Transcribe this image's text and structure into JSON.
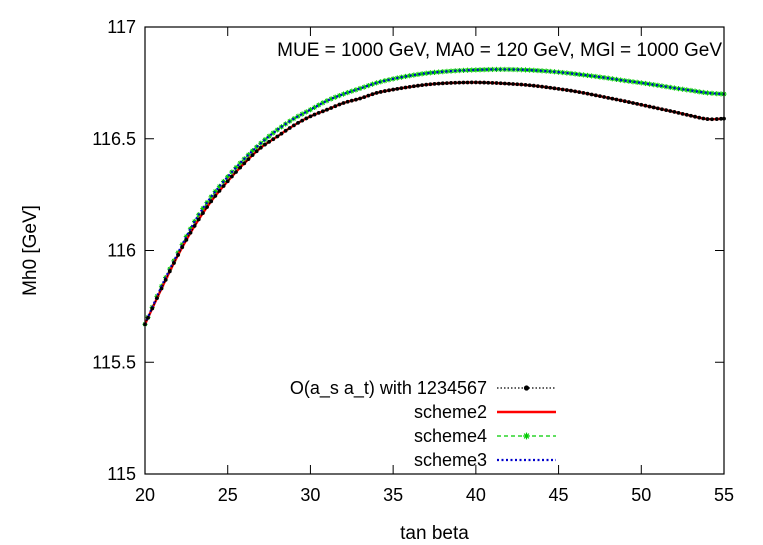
{
  "chart_data": {
    "type": "line",
    "title": "MUE = 1000 GeV, MA0 = 120 GeV, MGl = 1000 GeV",
    "xlabel": "tan beta",
    "ylabel": "Mh0 [GeV]",
    "xlim": [
      20,
      55
    ],
    "ylim": [
      115,
      117
    ],
    "xticks": [
      20,
      25,
      30,
      35,
      40,
      45,
      50,
      55
    ],
    "yticks": [
      115,
      115.5,
      116,
      116.5,
      117
    ],
    "legend_position": "bottom-center",
    "grid": false,
    "series": [
      {
        "name": "O(a_s a_t) with 1234567",
        "color": "#000000",
        "style": "dotted-with-dots",
        "x": [
          20,
          21,
          22,
          23,
          24,
          25,
          26,
          27,
          28,
          29,
          30,
          31,
          32,
          33,
          34,
          35,
          36,
          37,
          38,
          39,
          40,
          41,
          42,
          43,
          44,
          45,
          46,
          47,
          48,
          49,
          50,
          51,
          52,
          53,
          54,
          55
        ],
        "y": [
          115.67,
          115.83,
          115.98,
          116.11,
          116.22,
          116.31,
          116.39,
          116.46,
          116.51,
          116.56,
          116.6,
          116.63,
          116.66,
          116.68,
          116.705,
          116.72,
          116.732,
          116.742,
          116.748,
          116.751,
          116.752,
          116.75,
          116.746,
          116.741,
          116.733,
          116.723,
          116.712,
          116.698,
          116.683,
          116.668,
          116.652,
          116.636,
          116.62,
          116.603,
          116.588,
          116.59
        ]
      },
      {
        "name": "scheme2",
        "color": "#ff0000",
        "style": "solid",
        "x": [
          20,
          21,
          22,
          23,
          24,
          25,
          26,
          27,
          28,
          29,
          30,
          31,
          32,
          33,
          34,
          35,
          36,
          37,
          38,
          39,
          40,
          41,
          42,
          43,
          44,
          45,
          46,
          47,
          48,
          49,
          50,
          51,
          52,
          53,
          54,
          55
        ],
        "y": [
          115.67,
          115.83,
          115.98,
          116.11,
          116.22,
          116.31,
          116.39,
          116.46,
          116.51,
          116.56,
          116.6,
          116.63,
          116.66,
          116.68,
          116.705,
          116.72,
          116.732,
          116.742,
          116.748,
          116.751,
          116.752,
          116.75,
          116.746,
          116.741,
          116.733,
          116.723,
          116.712,
          116.698,
          116.683,
          116.668,
          116.652,
          116.636,
          116.62,
          116.603,
          116.588,
          116.59
        ]
      },
      {
        "name": "scheme4",
        "color": "#00cc00",
        "style": "dashed-with-stars",
        "x": [
          20,
          21,
          22,
          23,
          24,
          25,
          26,
          27,
          28,
          29,
          30,
          31,
          32,
          33,
          34,
          35,
          36,
          37,
          38,
          39,
          40,
          41,
          42,
          43,
          44,
          45,
          46,
          47,
          48,
          49,
          50,
          51,
          52,
          53,
          54,
          55
        ],
        "y": [
          115.67,
          115.84,
          115.99,
          116.13,
          116.24,
          116.33,
          116.41,
          116.48,
          116.54,
          116.59,
          116.63,
          116.67,
          116.7,
          116.725,
          116.75,
          116.768,
          116.782,
          116.793,
          116.8,
          116.805,
          116.808,
          116.81,
          116.81,
          116.808,
          116.804,
          116.798,
          116.79,
          116.781,
          116.771,
          116.76,
          116.75,
          116.739,
          116.727,
          116.716,
          116.705,
          116.7
        ]
      },
      {
        "name": "scheme3",
        "color": "#0000cc",
        "style": "dotted",
        "x": [
          20,
          21,
          22,
          23,
          24,
          25,
          26,
          27,
          28,
          29,
          30,
          31,
          32,
          33,
          34,
          35,
          36,
          37,
          38,
          39,
          40,
          41,
          42,
          43,
          44,
          45,
          46,
          47,
          48,
          49,
          50,
          51,
          52,
          53,
          54,
          55
        ],
        "y": [
          115.67,
          115.84,
          115.99,
          116.13,
          116.24,
          116.33,
          116.41,
          116.48,
          116.54,
          116.59,
          116.63,
          116.67,
          116.7,
          116.725,
          116.75,
          116.768,
          116.782,
          116.793,
          116.8,
          116.805,
          116.808,
          116.81,
          116.81,
          116.808,
          116.804,
          116.798,
          116.79,
          116.781,
          116.771,
          116.76,
          116.75,
          116.739,
          116.727,
          116.716,
          116.705,
          116.7
        ]
      }
    ]
  }
}
